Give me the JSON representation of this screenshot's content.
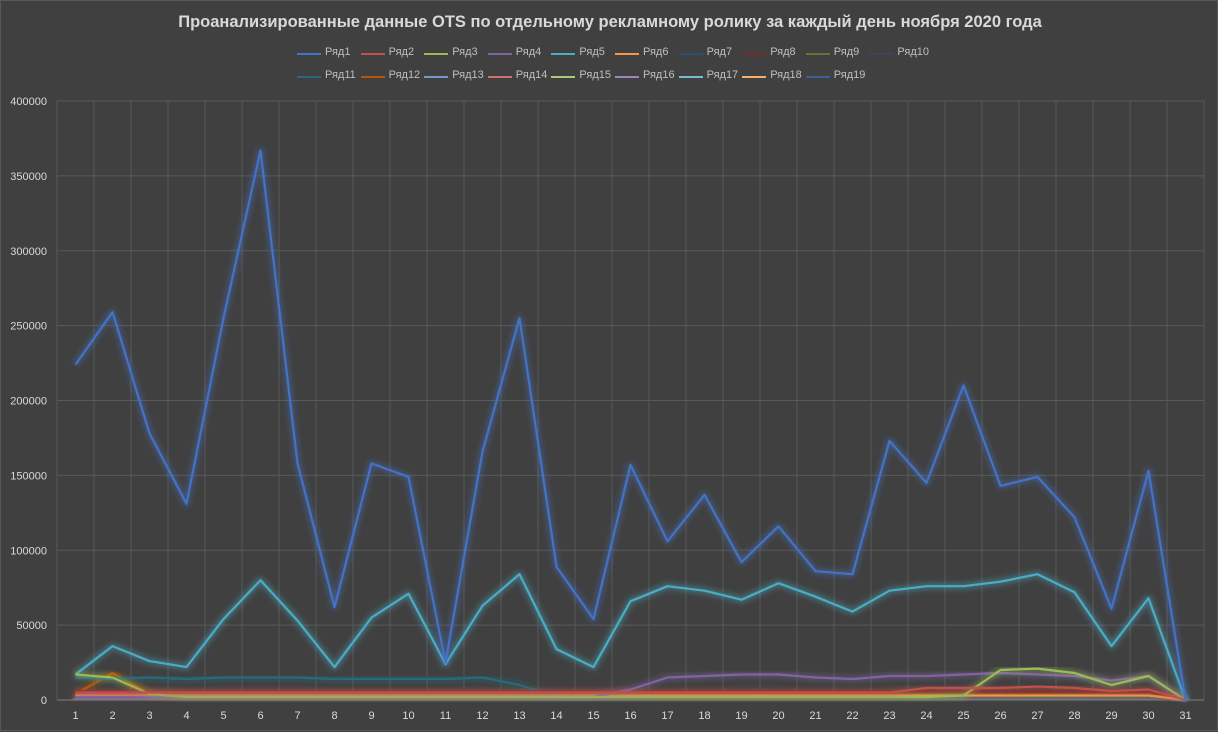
{
  "chart_data": {
    "type": "line",
    "title": "Проанализированные данные OTS по отдельному рекламному ролику за каждый день ноября 2020 года",
    "x": [
      1,
      2,
      3,
      4,
      5,
      6,
      7,
      8,
      9,
      10,
      11,
      12,
      13,
      14,
      15,
      16,
      17,
      18,
      19,
      20,
      21,
      22,
      23,
      24,
      25,
      26,
      27,
      28,
      29,
      30,
      31
    ],
    "xlabel": "",
    "ylabel": "",
    "ylim": [
      0,
      400000
    ],
    "yticks": [
      0,
      50000,
      100000,
      150000,
      200000,
      250000,
      300000,
      350000,
      400000
    ],
    "grid": true,
    "legend_position": "top",
    "series": [
      {
        "name": "Ряд1",
        "color": "#4472c4",
        "values": [
          224000,
          259000,
          178000,
          131000,
          255000,
          367000,
          158000,
          62000,
          158000,
          149000,
          25000,
          166000,
          255000,
          89000,
          54000,
          157000,
          106000,
          137000,
          92000,
          116000,
          86000,
          84000,
          173000,
          145000,
          210000,
          143000,
          149000,
          122000,
          61000,
          153000,
          0
        ]
      },
      {
        "name": "Ряд2",
        "color": "#c0504d",
        "values": [
          5000,
          5000,
          5000,
          5000,
          5000,
          5000,
          5000,
          5000,
          5000,
          5000,
          5000,
          5000,
          5000,
          5000,
          5000,
          5000,
          5000,
          5000,
          5000,
          5000,
          5000,
          5000,
          5000,
          8000,
          8000,
          8000,
          9000,
          8000,
          6000,
          7000,
          0
        ]
      },
      {
        "name": "Ряд3",
        "color": "#9bbb59",
        "values": [
          17000,
          15000,
          4000,
          2000,
          2000,
          2000,
          2000,
          2000,
          2000,
          2000,
          2000,
          2000,
          2000,
          2000,
          2000,
          2000,
          2000,
          2000,
          2000,
          2000,
          2000,
          2000,
          2000,
          2000,
          3000,
          20000,
          21000,
          18000,
          10000,
          16000,
          0
        ]
      },
      {
        "name": "Ряд4",
        "color": "#8064a2",
        "values": [
          2000,
          2000,
          2000,
          2000,
          2000,
          2000,
          2000,
          2000,
          2000,
          2000,
          2000,
          2000,
          2000,
          2000,
          2000,
          7000,
          15000,
          16000,
          17000,
          17000,
          15000,
          14000,
          16000,
          16000,
          17000,
          18000,
          17000,
          16000,
          13000,
          16000,
          0
        ]
      },
      {
        "name": "Ряд5",
        "color": "#4bacc6",
        "values": [
          17000,
          36000,
          26000,
          22000,
          54000,
          80000,
          53000,
          22000,
          55000,
          71000,
          24000,
          63000,
          84000,
          34000,
          22000,
          66000,
          76000,
          73000,
          67000,
          78000,
          69000,
          59000,
          73000,
          76000,
          76000,
          79000,
          84000,
          72000,
          36000,
          68000,
          0
        ]
      },
      {
        "name": "Ряд6",
        "color": "#f79646",
        "values": [
          3000,
          3000,
          3000,
          3000,
          3000,
          3000,
          3000,
          3000,
          3000,
          3000,
          3000,
          3000,
          3000,
          3000,
          3000,
          3000,
          3000,
          3000,
          3000,
          3000,
          3000,
          3000,
          3000,
          3000,
          3000,
          3000,
          3000,
          3000,
          3000,
          3000,
          0
        ]
      },
      {
        "name": "Ряд7",
        "color": "#2c4d75",
        "values": [
          2000,
          2000,
          2000,
          2000,
          2000,
          2000,
          2000,
          2000,
          2000,
          2000,
          2000,
          2000,
          2000,
          2000,
          2000,
          2000,
          2000,
          2000,
          2000,
          2000,
          2000,
          2000,
          2000,
          2000,
          2000,
          2000,
          2000,
          2000,
          2000,
          2000,
          0
        ]
      },
      {
        "name": "Ряд8",
        "color": "#772c2a",
        "values": [
          6000,
          6000,
          6000,
          6000,
          6000,
          6000,
          6000,
          6000,
          6000,
          6000,
          6000,
          6000,
          6000,
          6000,
          6000,
          6000,
          6000,
          6000,
          6000,
          6000,
          6000,
          6000,
          6000,
          6000,
          6000,
          6000,
          6000,
          6000,
          6000,
          6000,
          0
        ]
      },
      {
        "name": "Ряд9",
        "color": "#5f7530",
        "values": [
          3000,
          3000,
          3000,
          3000,
          3000,
          3000,
          3000,
          3000,
          3000,
          3000,
          3000,
          3000,
          3000,
          3000,
          3000,
          3000,
          3000,
          3000,
          3000,
          3000,
          3000,
          3000,
          3000,
          3000,
          3000,
          3000,
          3000,
          3000,
          3000,
          3000,
          0
        ]
      },
      {
        "name": "Ряд10",
        "color": "#4d3b62",
        "values": [
          2000,
          2000,
          2000,
          2000,
          2000,
          2000,
          2000,
          2000,
          2000,
          2000,
          2000,
          2000,
          2000,
          2000,
          2000,
          2000,
          2000,
          2000,
          2000,
          2000,
          2000,
          2000,
          2000,
          2000,
          2000,
          2000,
          2000,
          2000,
          2000,
          2000,
          0
        ]
      },
      {
        "name": "Ряд11",
        "color": "#276a7c",
        "values": [
          15000,
          14000,
          15000,
          14000,
          15000,
          15000,
          15000,
          14000,
          14000,
          14000,
          14000,
          15000,
          10000,
          2000,
          2000,
          2000,
          2000,
          2000,
          2000,
          2000,
          2000,
          2000,
          2000,
          2000,
          2000,
          2000,
          2000,
          2000,
          2000,
          2000,
          0
        ]
      },
      {
        "name": "Ряд12",
        "color": "#b65708",
        "values": [
          4000,
          18000,
          4000,
          4000,
          4000,
          4000,
          4000,
          4000,
          4000,
          4000,
          4000,
          4000,
          4000,
          4000,
          4000,
          4000,
          4000,
          4000,
          4000,
          4000,
          4000,
          4000,
          4000,
          4000,
          4000,
          4000,
          4000,
          4000,
          4000,
          4000,
          0
        ]
      },
      {
        "name": "Ряд13",
        "color": "#729aca",
        "values": [
          1000,
          1000,
          1000,
          1000,
          1000,
          1000,
          1000,
          1000,
          1000,
          1000,
          1000,
          1000,
          1000,
          1000,
          1000,
          1000,
          1000,
          1000,
          1000,
          1000,
          1000,
          1000,
          1000,
          1000,
          1000,
          1000,
          1000,
          1000,
          1000,
          1000,
          0
        ]
      },
      {
        "name": "Ряд14",
        "color": "#cd7371",
        "values": [
          4000,
          4000,
          4000,
          4000,
          4000,
          4000,
          4000,
          4000,
          4000,
          4000,
          4000,
          4000,
          4000,
          4000,
          4000,
          4000,
          4000,
          4000,
          4000,
          4000,
          4000,
          4000,
          4000,
          4000,
          4000,
          4000,
          4000,
          4000,
          4000,
          4000,
          0
        ]
      },
      {
        "name": "Ряд15",
        "color": "#afc97a",
        "values": [
          1000,
          1000,
          1000,
          1000,
          1000,
          1000,
          1000,
          1000,
          1000,
          1000,
          1000,
          1000,
          1000,
          1000,
          1000,
          1000,
          1000,
          1000,
          1000,
          1000,
          1000,
          1000,
          1000,
          1000,
          1000,
          1000,
          1000,
          1000,
          1000,
          1000,
          0
        ]
      },
      {
        "name": "Ряд16",
        "color": "#9d87b7",
        "values": [
          2000,
          2000,
          2000,
          2000,
          2000,
          2000,
          2000,
          2000,
          2000,
          2000,
          2000,
          2000,
          2000,
          2000,
          2000,
          2000,
          2000,
          2000,
          2000,
          2000,
          2000,
          2000,
          2000,
          2000,
          2000,
          2000,
          2000,
          2000,
          2000,
          2000,
          0
        ]
      },
      {
        "name": "Ряд17",
        "color": "#6fbdd1",
        "values": [
          1000,
          1000,
          1000,
          1000,
          1000,
          1000,
          1000,
          1000,
          1000,
          1000,
          1000,
          1000,
          1000,
          1000,
          1000,
          1000,
          1000,
          1000,
          1000,
          1000,
          1000,
          1000,
          1000,
          1000,
          1000,
          1000,
          1000,
          1000,
          1000,
          1000,
          0
        ]
      },
      {
        "name": "Ряд18",
        "color": "#f9ab6b",
        "values": [
          1000,
          1000,
          1000,
          1000,
          1000,
          1000,
          1000,
          1000,
          1000,
          1000,
          1000,
          1000,
          1000,
          1000,
          1000,
          1000,
          1000,
          1000,
          1000,
          1000,
          1000,
          1000,
          1000,
          1000,
          1000,
          1000,
          1000,
          1000,
          1000,
          1000,
          0
        ]
      },
      {
        "name": "Ряд19",
        "color": "#3a5f96",
        "values": [
          1000,
          1000,
          1000,
          1000,
          1000,
          1000,
          1000,
          1000,
          1000,
          1000,
          1000,
          1000,
          1000,
          1000,
          1000,
          1000,
          1000,
          1000,
          1000,
          1000,
          1000,
          1000,
          1000,
          1000,
          1000,
          1000,
          1000,
          1000,
          1000,
          1000,
          0
        ]
      }
    ]
  }
}
